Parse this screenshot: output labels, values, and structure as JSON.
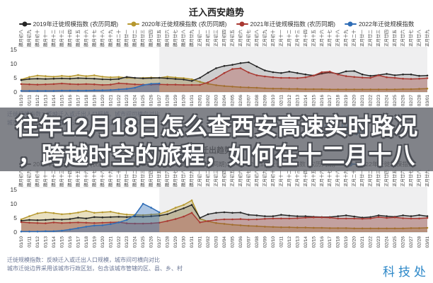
{
  "overlay": {
    "line1": "往年12月18日怎么查西安高速实时路况",
    "line2": "，跨越时空的旅程，如何在十二月十八",
    "band_color": "rgba(97,100,107,0.8)",
    "text_color": "#ffffff"
  },
  "watermark": {
    "text": "科技处",
    "color": "#2b87c8"
  },
  "footnote": {
    "line1": "迁徙规模指数：反映迁入或迁出人口规模，城市间可横向对比",
    "line2": "城市迁徙边界采用该城市行政区划，包含该城市管辖的区、县、乡、村"
  },
  "chart_data": [
    {
      "type": "area",
      "title": "迁入西安趋势",
      "ylabel": "",
      "xlabel": "",
      "ylim": [
        0,
        15
      ],
      "yticks": [
        0,
        5,
        10,
        15
      ],
      "grid": false,
      "legend_position": "top",
      "shade_from_index": 17,
      "x": [
        "01/10",
        "01/11",
        "01/12",
        "01/13",
        "01/14",
        "01/15",
        "01/16",
        "01/17",
        "01/18",
        "01/19",
        "01/20",
        "01/21",
        "01/22",
        "01/23",
        "01/24",
        "01/25",
        "01/26",
        "01/27",
        "01/28",
        "01/29",
        "01/30",
        "01/31",
        "02/01",
        "02/02",
        "02/03",
        "02/04",
        "02/05",
        "02/06",
        "02/07",
        "02/08",
        "02/09",
        "02/10",
        "02/11",
        "02/12",
        "02/13",
        "02/14",
        "02/15",
        "02/16",
        "02/17",
        "02/18",
        "02/19",
        "02/20",
        "02/21",
        "02/22",
        "02/23",
        "02/24",
        "02/25",
        "02/26",
        "02/27",
        "02/28",
        "03/01"
      ],
      "x_lunar": [
        "腊月初八",
        "腊月初九",
        "腊月初十",
        "腊月十一",
        "腊月十二",
        "腊月十三",
        "腊月十四",
        "腊月十五",
        "腊月十六",
        "腊月十七",
        "腊月十八",
        "腊月十九",
        "腊月二十",
        "腊月廿一",
        "腊月廿二",
        "腊月廿三",
        "腊月廿四",
        "腊月廿五",
        "腊月廿六",
        "腊月廿七",
        "腊月廿八",
        "腊月廿九",
        "正月初一",
        "正月初二",
        "正月初三",
        "正月初四",
        "正月初五",
        "正月初六",
        "正月初七",
        "正月初八",
        "正月初九",
        "正月初十",
        "正月十一",
        "正月十二",
        "正月十三",
        "正月十四",
        "正月十五",
        "正月十六",
        "正月十七",
        "正月十八",
        "正月十九",
        "正月二十",
        "正月廿一",
        "正月廿二",
        "正月廿三",
        "正月廿四",
        "正月廿五",
        "正月廿六",
        "正月廿七",
        "正月廿八",
        "正月廿九"
      ],
      "series": [
        {
          "key": "2020",
          "name": "2020年迁徙规模指数 (农历同期)",
          "color": "#b6982f",
          "fill_opacity": 0.3,
          "values": [
            4.4,
            5.3,
            5.8,
            5.6,
            5.4,
            5.7,
            5.5,
            6.0,
            5.6,
            5.9,
            5.4,
            5.2,
            5.3,
            5.0,
            4.9,
            5.0,
            5.1,
            5.0,
            5.4,
            5.1,
            4.9,
            4.5,
            3.6,
            2.9,
            2.4,
            2.1,
            1.9,
            1.7,
            1.6,
            1.5,
            1.3,
            1.2,
            1.2,
            1.1,
            1.1,
            1.0,
            1.0,
            1.0,
            0.9,
            0.9,
            0.9,
            0.9,
            0.9,
            0.9,
            0.9,
            0.9,
            0.9,
            1.0,
            1.0,
            1.1,
            1.2
          ]
        },
        {
          "key": "2019",
          "name": "2019年迁徙规模指数 (农历同期)",
          "color": "#262626",
          "fill_opacity": 0.16,
          "values": [
            4.2,
            4.6,
            4.7,
            4.6,
            4.7,
            4.8,
            4.7,
            4.9,
            4.8,
            4.7,
            4.5,
            4.4,
            4.6,
            5.3,
            5.0,
            4.8,
            4.9,
            5.0,
            4.8,
            4.6,
            4.4,
            3.9,
            5.0,
            6.8,
            8.4,
            9.2,
            9.6,
            10.2,
            10.5,
            9.0,
            7.6,
            7.0,
            6.7,
            7.2,
            6.7,
            6.2,
            5.8,
            6.5,
            6.9,
            6.4,
            7.3,
            7.4,
            6.2,
            5.7,
            6.0,
            6.4,
            5.9,
            6.2,
            6.2,
            5.7,
            5.8
          ]
        },
        {
          "key": "2021",
          "name": "2021年迁徙规模指数 (农历同期)",
          "color": "#a93831",
          "fill_opacity": 0.3,
          "values": [
            2.8,
            2.7,
            2.6,
            2.7,
            2.8,
            3.0,
            2.8,
            2.7,
            2.8,
            2.7,
            2.5,
            2.6,
            3.1,
            2.9,
            2.7,
            2.6,
            2.6,
            2.7,
            2.6,
            2.6,
            2.5,
            2.5,
            2.5,
            3.4,
            4.9,
            6.7,
            8.1,
            8.4,
            6.9,
            5.9,
            5.5,
            5.2,
            5.0,
            5.0,
            4.9,
            5.2,
            5.8,
            7.0,
            7.2,
            6.2,
            5.6,
            5.3,
            5.1,
            5.0,
            5.9,
            5.2,
            5.0,
            4.7,
            4.6,
            4.7,
            4.9
          ]
        },
        {
          "key": "2022",
          "name": "2022年迁徙规模指数",
          "color": "#2f6db6",
          "fill_opacity": 0.4,
          "values": [
            0.4,
            0.4,
            0.4,
            0.4,
            0.4,
            0.5,
            0.5,
            0.5,
            0.5,
            0.6,
            0.6,
            0.7,
            0.9,
            1.1,
            1.5,
            2.4,
            2.9,
            3.0,
            null,
            null,
            null,
            null,
            null,
            null,
            null,
            null,
            null,
            null,
            null,
            null,
            null,
            null,
            null,
            null,
            null,
            null,
            null,
            null,
            null,
            null,
            null,
            null,
            null,
            null,
            null,
            null,
            null,
            null,
            null,
            null,
            null
          ]
        }
      ]
    },
    {
      "type": "area",
      "title": "迁出趋势",
      "ylabel": "",
      "xlabel": "",
      "ylim": [
        0,
        15
      ],
      "yticks": [
        0,
        5,
        10,
        15
      ],
      "grid": false,
      "legend_position": "top",
      "shade_from_index": 17,
      "x": [
        "01/10",
        "01/11",
        "01/12",
        "01/13",
        "01/14",
        "01/15",
        "01/16",
        "01/17",
        "01/18",
        "01/19",
        "01/20",
        "01/21",
        "01/22",
        "01/23",
        "01/24",
        "01/25",
        "01/26",
        "01/27",
        "01/28",
        "01/29",
        "01/30",
        "01/31",
        "02/01",
        "02/02",
        "02/03",
        "02/04",
        "02/05",
        "02/06",
        "02/07",
        "02/08",
        "02/09",
        "02/10",
        "02/11",
        "02/12",
        "02/13",
        "02/14",
        "02/15",
        "02/16",
        "02/17",
        "02/18",
        "02/19",
        "02/20",
        "02/21",
        "02/22",
        "02/23",
        "02/24",
        "02/25",
        "02/26",
        "02/27",
        "02/28",
        "03/01"
      ],
      "x_lunar": [
        "腊月初八",
        "腊月初九",
        "腊月初十",
        "腊月十一",
        "腊月十二",
        "腊月十三",
        "腊月十四",
        "腊月十五",
        "腊月十六",
        "腊月十七",
        "腊月十八",
        "腊月十九",
        "腊月二十",
        "腊月廿一",
        "腊月廿二",
        "腊月廿三",
        "腊月廿四",
        "腊月廿五",
        "腊月廿六",
        "腊月廿七",
        "腊月廿八",
        "腊月廿九",
        "正月初一",
        "正月初二",
        "正月初三",
        "正月初四",
        "正月初五",
        "正月初六",
        "正月初七",
        "正月初八",
        "正月初九",
        "正月初十",
        "正月十一",
        "正月十二",
        "正月十三",
        "正月十四",
        "正月十五",
        "正月十六",
        "正月十七",
        "正月十八",
        "正月十九",
        "正月二十",
        "正月廿一",
        "正月廿二",
        "正月廿三",
        "正月廿四",
        "正月廿五",
        "正月廿六",
        "正月廿七",
        "正月廿八",
        "正月廿九"
      ],
      "series": [
        {
          "key": "2020",
          "name": "2020年迁徙规模指数 (农历同期)",
          "color": "#b6982f",
          "fill_opacity": 0.3,
          "values": [
            4.5,
            5.6,
            6.6,
            7.0,
            6.7,
            6.3,
            6.5,
            6.9,
            7.5,
            6.8,
            7.0,
            7.2,
            6.6,
            6.2,
            6.1,
            6.0,
            6.2,
            6.4,
            7.3,
            8.6,
            9.6,
            11.2,
            4.7,
            3.8,
            3.2,
            2.9,
            2.6,
            2.4,
            2.2,
            2.1,
            1.9,
            1.8,
            1.7,
            1.7,
            1.6,
            1.6,
            1.5,
            1.5,
            1.4,
            1.4,
            1.4,
            1.3,
            1.3,
            1.3,
            1.3,
            1.3,
            1.3,
            1.3,
            1.4,
            1.4,
            1.5
          ]
        },
        {
          "key": "2019",
          "name": "2019年迁徙规模指数 (农历同期)",
          "color": "#262626",
          "fill_opacity": 0.16,
          "values": [
            4.0,
            4.3,
            4.2,
            4.3,
            4.5,
            4.4,
            4.6,
            5.1,
            4.8,
            5.3,
            5.2,
            5.3,
            5.4,
            5.3,
            5.5,
            5.4,
            5.6,
            5.8,
            6.3,
            7.4,
            8.4,
            9.6,
            5.0,
            6.3,
            6.8,
            7.0,
            6.8,
            6.9,
            6.1,
            5.9,
            5.6,
            5.6,
            6.1,
            5.8,
            5.6,
            5.6,
            5.4,
            5.3,
            5.3,
            5.6,
            5.9,
            5.5,
            5.1,
            5.3,
            5.9,
            5.6,
            5.4,
            5.9,
            5.6,
            6.0,
            5.6
          ]
        },
        {
          "key": "2021",
          "name": "2021年迁徙规模指数 (农历同期)",
          "color": "#a93831",
          "fill_opacity": 0.3,
          "values": [
            3.5,
            3.3,
            3.2,
            3.1,
            3.4,
            3.2,
            3.3,
            3.4,
            3.3,
            3.2,
            3.3,
            3.4,
            3.5,
            3.1,
            3.0,
            3.0,
            3.1,
            3.3,
            3.9,
            4.6,
            5.5,
            6.8,
            3.4,
            3.9,
            4.3,
            4.5,
            4.5,
            4.6,
            4.4,
            4.5,
            4.7,
            4.8,
            4.8,
            4.8,
            4.9,
            5.1,
            5.2,
            5.2,
            5.1,
            4.8,
            4.8,
            4.8,
            4.7,
            4.8,
            5.3,
            5.0,
            5.2,
            4.9,
            4.8,
            4.8,
            5.0
          ]
        },
        {
          "key": "2022",
          "name": "2022年迁徙规模指数",
          "color": "#2f6db6",
          "fill_opacity": 0.4,
          "values": [
            0.2,
            0.2,
            0.2,
            0.3,
            0.3,
            0.5,
            0.9,
            1.4,
            1.9,
            2.3,
            2.4,
            2.8,
            3.4,
            4.3,
            6.0,
            10.0,
            8.6,
            7.0,
            null,
            null,
            null,
            null,
            null,
            null,
            null,
            null,
            null,
            null,
            null,
            null,
            null,
            null,
            null,
            null,
            null,
            null,
            null,
            null,
            null,
            null,
            null,
            null,
            null,
            null,
            null,
            null,
            null,
            null,
            null,
            null,
            null
          ]
        }
      ]
    }
  ]
}
